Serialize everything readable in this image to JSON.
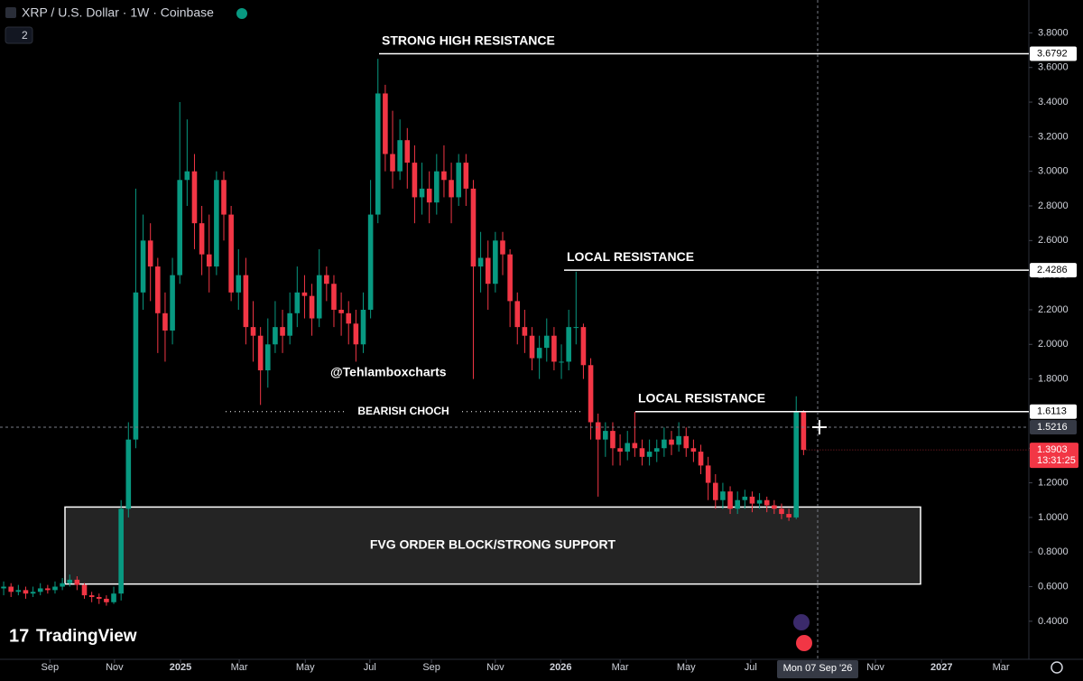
{
  "chart_data": {
    "type": "candlestick",
    "title": "XRP / U.S. Dollar · 1W · Coinbase",
    "collapsed_indicators": 2,
    "up_color": "#089981",
    "down_color": "#f23645",
    "open": [
      0.59,
      0.6,
      0.57,
      0.58,
      0.56,
      0.57,
      0.59,
      0.58,
      0.6,
      0.62,
      0.64,
      0.61,
      0.55,
      0.54,
      0.53,
      0.51,
      0.56,
      1.05,
      1.45,
      2.3,
      2.6,
      2.45,
      2.18,
      2.08,
      2.4,
      2.95,
      3.0,
      2.7,
      2.52,
      2.45,
      2.95,
      2.75,
      2.3,
      2.4,
      2.1,
      2.05,
      1.85,
      2.0,
      2.1,
      2.05,
      2.18,
      2.3,
      2.28,
      2.15,
      2.4,
      2.35,
      2.2,
      2.18,
      2.12,
      2.0,
      2.2,
      2.75,
      3.45,
      3.1,
      3.0,
      3.18,
      3.05,
      2.85,
      2.9,
      2.82,
      3.0,
      2.95,
      2.85,
      3.05,
      2.9,
      2.45,
      2.5,
      2.35,
      2.6,
      2.52,
      2.25,
      2.1,
      2.05,
      1.92,
      1.98,
      2.05,
      1.9,
      1.9,
      2.1,
      2.1,
      1.88,
      1.55,
      1.45,
      1.5,
      1.4,
      1.38,
      1.43,
      1.4,
      1.35,
      1.38,
      1.4,
      1.45,
      1.42,
      1.47,
      1.4,
      1.38,
      1.3,
      1.2,
      1.1,
      1.15,
      1.05,
      1.1,
      1.12,
      1.08,
      1.1,
      1.07,
      1.05,
      1.02,
      1.0,
      1.61
    ],
    "high": [
      0.63,
      0.62,
      0.61,
      0.6,
      0.6,
      0.62,
      0.61,
      0.63,
      0.65,
      0.67,
      0.66,
      0.62,
      0.57,
      0.56,
      0.55,
      0.6,
      1.1,
      1.55,
      2.9,
      2.75,
      2.7,
      2.5,
      2.3,
      2.5,
      3.4,
      3.3,
      3.1,
      2.8,
      2.75,
      3.0,
      3.0,
      2.8,
      2.55,
      2.5,
      2.25,
      2.1,
      2.15,
      2.25,
      2.2,
      2.3,
      2.45,
      2.4,
      2.35,
      2.55,
      2.45,
      2.4,
      2.3,
      2.25,
      2.2,
      2.3,
      2.95,
      3.65,
      3.5,
      3.35,
      3.3,
      3.25,
      3.15,
      3.05,
      3.0,
      3.1,
      3.15,
      3.05,
      3.1,
      3.1,
      2.95,
      2.65,
      2.6,
      2.65,
      2.65,
      2.55,
      2.3,
      2.2,
      2.1,
      2.05,
      2.15,
      2.1,
      2.0,
      2.2,
      2.42,
      2.12,
      1.92,
      1.6,
      1.55,
      1.55,
      1.48,
      1.5,
      1.61,
      1.45,
      1.45,
      1.45,
      1.52,
      1.5,
      1.55,
      1.52,
      1.45,
      1.42,
      1.35,
      1.25,
      1.2,
      1.18,
      1.15,
      1.16,
      1.15,
      1.14,
      1.12,
      1.1,
      1.08,
      1.05,
      1.7,
      1.62
    ],
    "low": [
      0.55,
      0.54,
      0.55,
      0.53,
      0.54,
      0.55,
      0.56,
      0.56,
      0.58,
      0.6,
      0.58,
      0.53,
      0.51,
      0.5,
      0.49,
      0.5,
      0.52,
      1.0,
      1.4,
      2.2,
      2.25,
      1.95,
      1.9,
      2.0,
      2.35,
      2.8,
      2.55,
      2.4,
      2.3,
      2.4,
      2.6,
      2.25,
      2.2,
      2.0,
      1.9,
      1.65,
      1.75,
      1.95,
      1.95,
      2.0,
      2.1,
      2.15,
      2.05,
      2.1,
      2.25,
      2.1,
      2.05,
      2.0,
      1.9,
      1.95,
      2.15,
      2.7,
      3.0,
      2.9,
      2.95,
      2.9,
      2.7,
      2.75,
      2.7,
      2.75,
      2.85,
      2.7,
      2.8,
      2.8,
      1.8,
      2.3,
      2.2,
      2.3,
      2.4,
      2.1,
      2.0,
      1.95,
      1.85,
      1.8,
      1.9,
      1.85,
      1.8,
      1.85,
      2.0,
      1.8,
      1.45,
      1.12,
      1.35,
      1.3,
      1.3,
      1.33,
      1.35,
      1.3,
      1.3,
      1.32,
      1.35,
      1.36,
      1.38,
      1.35,
      1.32,
      1.25,
      1.1,
      1.05,
      1.05,
      1.02,
      1.02,
      1.05,
      1.03,
      1.05,
      1.03,
      1.02,
      0.99,
      0.98,
      0.99,
      1.36
    ],
    "close": [
      0.6,
      0.57,
      0.58,
      0.56,
      0.57,
      0.59,
      0.58,
      0.6,
      0.62,
      0.64,
      0.61,
      0.55,
      0.54,
      0.53,
      0.51,
      0.56,
      1.05,
      1.45,
      2.3,
      2.6,
      2.45,
      2.18,
      2.08,
      2.4,
      2.95,
      3.0,
      2.7,
      2.52,
      2.45,
      2.95,
      2.75,
      2.3,
      2.4,
      2.1,
      2.05,
      1.85,
      2.0,
      2.1,
      2.05,
      2.18,
      2.3,
      2.28,
      2.15,
      2.4,
      2.35,
      2.2,
      2.18,
      2.12,
      2.0,
      2.2,
      2.75,
      3.45,
      3.1,
      3.0,
      3.18,
      3.05,
      2.85,
      2.9,
      2.82,
      3.0,
      2.95,
      2.85,
      3.05,
      2.9,
      2.45,
      2.5,
      2.35,
      2.6,
      2.52,
      2.25,
      2.1,
      2.05,
      1.92,
      1.98,
      2.05,
      1.9,
      1.9,
      2.1,
      2.1,
      1.88,
      1.55,
      1.45,
      1.5,
      1.4,
      1.38,
      1.43,
      1.4,
      1.35,
      1.38,
      1.4,
      1.45,
      1.42,
      1.47,
      1.4,
      1.38,
      1.3,
      1.2,
      1.1,
      1.15,
      1.05,
      1.1,
      1.12,
      1.08,
      1.1,
      1.07,
      1.05,
      1.02,
      1.0,
      1.61,
      1.39
    ],
    "xlim": [
      -0.5,
      139.7
    ],
    "xticks": [
      {
        "value": 6.3,
        "label": "Sep"
      },
      {
        "value": 15.1,
        "label": "Nov"
      },
      {
        "value": 24.1,
        "label": "2025"
      },
      {
        "value": 32.1,
        "label": "Mar"
      },
      {
        "value": 41.1,
        "label": "May"
      },
      {
        "value": 49.9,
        "label": "Jul"
      },
      {
        "value": 58.3,
        "label": "Sep"
      },
      {
        "value": 67.0,
        "label": "Nov"
      },
      {
        "value": 75.9,
        "label": "2026"
      },
      {
        "value": 84.0,
        "label": "Mar"
      },
      {
        "value": 93.0,
        "label": "May"
      },
      {
        "value": 101.8,
        "label": "Jul"
      },
      {
        "value": 118.8,
        "label": "Nov"
      },
      {
        "value": 127.8,
        "label": "2027"
      },
      {
        "value": 135.9,
        "label": "Mar"
      }
    ],
    "ylim": [
      0.18,
      3.99
    ],
    "yticks": [
      {
        "value": 0.4,
        "label": "0.4000"
      },
      {
        "value": 0.6,
        "label": "0.6000"
      },
      {
        "value": 0.8,
        "label": "0.8000"
      },
      {
        "value": 1.0,
        "label": "1.0000"
      },
      {
        "value": 1.2,
        "label": "1.2000"
      },
      {
        "value": 1.4,
        "label": "1.4000"
      },
      {
        "value": 1.6,
        "label": "1.6000"
      },
      {
        "value": 1.8,
        "label": "1.8000"
      },
      {
        "value": 2.0,
        "label": "2.0000"
      },
      {
        "value": 2.2,
        "label": "2.2000"
      },
      {
        "value": 2.4,
        "label": "2.4000"
      },
      {
        "value": 2.6,
        "label": "2.6000"
      },
      {
        "value": 2.8,
        "label": "2.8000"
      },
      {
        "value": 3.0,
        "label": "3.0000"
      },
      {
        "value": 3.2,
        "label": "3.2000"
      },
      {
        "value": 3.4,
        "label": "3.4000"
      },
      {
        "value": 3.6,
        "label": "3.6000"
      },
      {
        "value": 3.8,
        "label": "3.8000"
      }
    ],
    "levels": [
      {
        "value": 3.6792,
        "text": "STRONG HIGH RESISTANCE"
      },
      {
        "value": 2.4286,
        "text": "LOCAL RESISTANCE"
      },
      {
        "value": 1.6113,
        "text": "LOCAL RESISTANCE"
      }
    ],
    "bearish_choch": "BEARISH CHOCH",
    "zone": {
      "text": "FVG ORDER BLOCK/STRONG SUPPORT",
      "low": 0.615,
      "high": 1.06
    },
    "watermark": "@Tehlamboxcharts",
    "crosshair": {
      "price": 1.5216,
      "date": "Mon 07 Sep '26"
    },
    "last_price": 1.3903,
    "countdown": "13:31:25",
    "logo": "TradingView"
  }
}
